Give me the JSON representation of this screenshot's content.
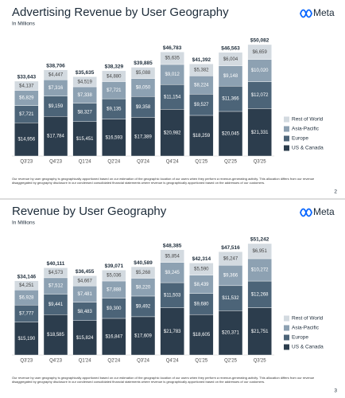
{
  "chart_data": [
    {
      "type": "stacked_bar",
      "title": "Advertising Revenue by User Geography",
      "subtitle": "In Millions",
      "categories": [
        "Q3'23",
        "Q4'23",
        "Q1'24",
        "Q2'24",
        "Q3'24",
        "Q4'24",
        "Q1'25",
        "Q2'25",
        "Q3'25"
      ],
      "series": [
        {
          "name": "US & Canada",
          "color": "#2c3d4d",
          "values": [
            14956,
            17784,
            15451,
            16593,
            17389,
            20982,
            18259,
            20045,
            21331
          ],
          "value_labels": [
            "$14,956",
            "$17,784",
            "$15,451",
            "$16,593",
            "$17,389",
            "$20,982",
            "$18,259",
            "$20,045",
            "$21,331"
          ]
        },
        {
          "name": "Europe",
          "color": "#4c6478",
          "values": [
            7721,
            9159,
            8327,
            9135,
            9358,
            11154,
            9527,
            11366,
            12072
          ],
          "value_labels": [
            "$7,721",
            "$9,159",
            "$8,327",
            "$9,135",
            "$9,358",
            "$11,154",
            "$9,527",
            "$11,366",
            "$12,072"
          ]
        },
        {
          "name": "Asia-Pacific",
          "color": "#8da1b2",
          "values": [
            6829,
            7316,
            7338,
            7721,
            8050,
            9012,
            8224,
            9148,
            10020
          ],
          "value_labels": [
            "$6,829",
            "$7,316",
            "$7,338",
            "$7,721",
            "$8,050",
            "$9,012",
            "$8,224",
            "$9,148",
            "$10,020"
          ]
        },
        {
          "name": "Rest of World",
          "color": "#d3dae0",
          "values": [
            4137,
            4447,
            4519,
            4880,
            5088,
            5635,
            5382,
            6004,
            6659
          ],
          "value_labels": [
            "$4,137",
            "$4,447",
            "$4,519",
            "$4,880",
            "$5,088",
            "$5,635",
            "$5,382",
            "$6,004",
            "$6,659"
          ]
        }
      ],
      "totals": [
        33643,
        38706,
        35635,
        38329,
        39885,
        46783,
        41392,
        46563,
        50082
      ],
      "total_labels": [
        "$33,643",
        "$38,706",
        "$35,635",
        "$38,329",
        "$39,885",
        "$46,783",
        "$41,392",
        "$46,563",
        "$50,082"
      ]
    },
    {
      "type": "stacked_bar",
      "title": "Revenue by User Geography",
      "subtitle": "In Millions",
      "categories": [
        "Q3'23",
        "Q4'23",
        "Q1'24",
        "Q2'24",
        "Q3'24",
        "Q4'24",
        "Q1'25",
        "Q2'25",
        "Q3'25"
      ],
      "series": [
        {
          "name": "US & Canada",
          "color": "#2c3d4d",
          "values": [
            15190,
            18585,
            15824,
            16847,
            17609,
            21783,
            18605,
            20371,
            21751
          ],
          "value_labels": [
            "$15,190",
            "$18,585",
            "$15,824",
            "$16,847",
            "$17,609",
            "$21,783",
            "$18,605",
            "$20,371",
            "$21,751"
          ]
        },
        {
          "name": "Europe",
          "color": "#4c6478",
          "values": [
            7777,
            9441,
            8483,
            9300,
            9492,
            11503,
            9680,
            11532,
            12268
          ],
          "value_labels": [
            "$7,777",
            "$9,441",
            "$8,483",
            "$9,300",
            "$9,492",
            "$11,503",
            "$9,680",
            "$11,532",
            "$12,268"
          ]
        },
        {
          "name": "Asia-Pacific",
          "color": "#8da1b2",
          "values": [
            6928,
            7512,
            7481,
            7888,
            8220,
            9245,
            8439,
            9366,
            10272
          ],
          "value_labels": [
            "$6,928",
            "$7,512",
            "$7,481",
            "$7,888",
            "$8,220",
            "$9,245",
            "$8,439",
            "$9,366",
            "$10,272"
          ]
        },
        {
          "name": "Rest of World",
          "color": "#d3dae0",
          "values": [
            4251,
            4573,
            4667,
            5036,
            5268,
            5854,
            5590,
            6247,
            6951
          ],
          "value_labels": [
            "$4,251",
            "$4,573",
            "$4,667",
            "$5,036",
            "$5,268",
            "$5,854",
            "$5,590",
            "$6,247",
            "$6,951"
          ]
        }
      ],
      "totals": [
        34146,
        40111,
        36455,
        39071,
        40589,
        48385,
        42314,
        47516,
        51242
      ],
      "total_labels": [
        "$34,146",
        "$40,111",
        "$36,455",
        "$39,071",
        "$40,589",
        "$48,385",
        "$42,314",
        "$47,516",
        "$51,242"
      ]
    }
  ],
  "slides": [
    {
      "logo": "Meta",
      "page": "2",
      "footnote": "Our revenue by user geography is geographically apportioned based on our estimation of the geographic location of our users when they perform a revenue-generating activity. This allocation differs from our revenue disaggregated by geography disclosure in our condensed consolidated financial statements where revenue is geographically apportioned based on the addresses of our customers."
    },
    {
      "logo": "Meta",
      "page": "3",
      "footnote": "Our revenue by user geography is geographically apportioned based on our estimation of the geographic location of our users when they perform a revenue-generating activity. This allocation differs from our revenue disaggregated by geography disclosure in our condensed consolidated financial statements where revenue is geographically apportioned based on the addresses of our customers."
    }
  ]
}
